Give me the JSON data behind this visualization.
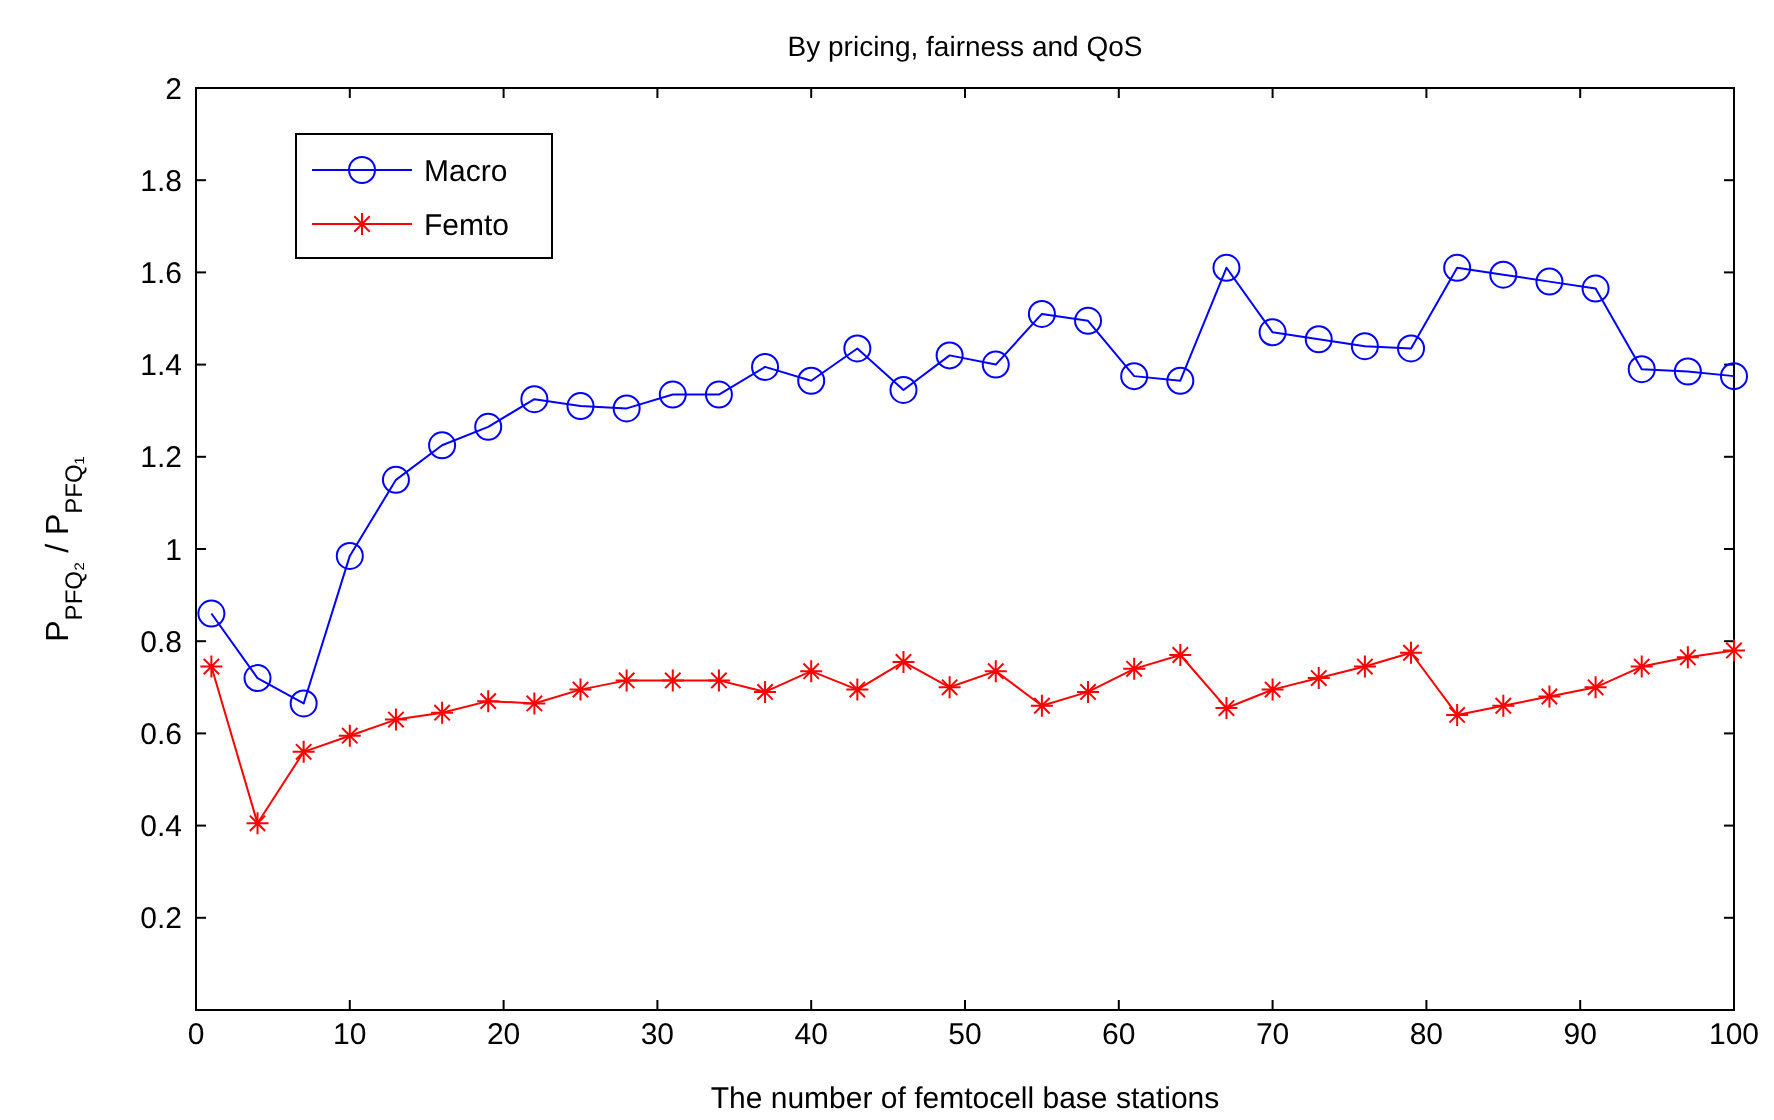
{
  "chart_data": {
    "type": "line",
    "title": "By pricing, fairness and QoS",
    "xlabel": "The number of femtocell base stations",
    "ylabel": "P$_{PFQ₂}$ / P$_{PFQ₁}$",
    "x": [
      1,
      4,
      7,
      10,
      13,
      16,
      19,
      22,
      25,
      28,
      31,
      34,
      37,
      40,
      43,
      46,
      49,
      52,
      55,
      58,
      61,
      64,
      67,
      70,
      73,
      76,
      79,
      82,
      85,
      88,
      91,
      94,
      97,
      100
    ],
    "series": [
      {
        "name": "Macro",
        "color": "#0000ff",
        "marker": "circle",
        "values": [
          0.86,
          0.72,
          0.665,
          0.985,
          1.15,
          1.225,
          1.265,
          1.325,
          1.31,
          1.305,
          1.335,
          1.335,
          1.395,
          1.365,
          1.435,
          1.345,
          1.42,
          1.4,
          1.51,
          1.495,
          1.375,
          1.365,
          1.61,
          1.47,
          1.455,
          1.44,
          1.435,
          1.61,
          1.595,
          1.58,
          1.565,
          1.39,
          1.385,
          1.375
        ]
      },
      {
        "name": "Femto",
        "color": "#ff0000",
        "marker": "cross",
        "values": [
          0.745,
          0.405,
          0.56,
          0.595,
          0.63,
          0.645,
          0.67,
          0.665,
          0.695,
          0.715,
          0.715,
          0.715,
          0.69,
          0.735,
          0.695,
          0.755,
          0.7,
          0.735,
          0.66,
          0.69,
          0.74,
          0.77,
          0.655,
          0.695,
          0.72,
          0.745,
          0.775,
          0.64,
          0.66,
          0.68,
          0.7,
          0.745,
          0.765,
          0.78
        ]
      }
    ],
    "xlim": [
      0,
      100
    ],
    "xticks": [
      0,
      10,
      20,
      30,
      40,
      50,
      60,
      70,
      80,
      90,
      100
    ],
    "ylim": [
      0,
      2
    ],
    "yticks": [
      0.2,
      0.4,
      0.6,
      0.8,
      1,
      1.2,
      1.4,
      1.6,
      1.8,
      2
    ],
    "grid": false,
    "legend": "top left",
    "line_style": "solid"
  }
}
